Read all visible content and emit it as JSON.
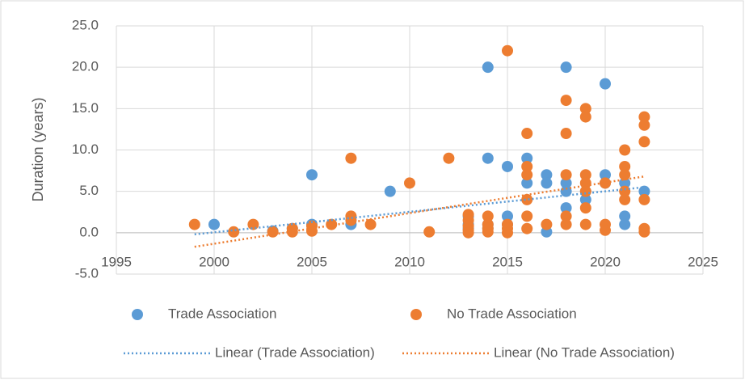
{
  "chart_data": {
    "type": "scatter",
    "y_label": "Duration (years)",
    "xlim": [
      1995,
      2025
    ],
    "xticks": [
      1995,
      2000,
      2005,
      2010,
      2015,
      2020,
      2025
    ],
    "ylim": [
      -5,
      25
    ],
    "yticks": [
      {
        "value": -5,
        "label": "-5.0"
      },
      {
        "value": 0,
        "label": "0.0"
      },
      {
        "value": 5,
        "label": "5.0"
      },
      {
        "value": 10,
        "label": "10.0"
      },
      {
        "value": 15,
        "label": "15.0"
      },
      {
        "value": 20,
        "label": "20.0"
      },
      {
        "value": 25,
        "label": "25.0"
      }
    ],
    "grid": true,
    "legend": "bottom",
    "series": [
      {
        "name": "Trade Association",
        "color": "#5b9bd5",
        "style": "marker",
        "x": [
          2000,
          2003,
          2004,
          2005,
          2005,
          2007,
          2009,
          2013,
          2013,
          2013,
          2014,
          2014,
          2014,
          2014,
          2015,
          2015,
          2015,
          2016,
          2016,
          2017,
          2017,
          2017,
          2018,
          2018,
          2018,
          2018,
          2019,
          2019,
          2020,
          2020,
          2020,
          2021,
          2021,
          2021,
          2022
        ],
        "values": [
          1,
          0.2,
          0.5,
          7,
          1,
          1,
          5,
          2,
          1,
          0.5,
          20,
          9,
          1,
          0.5,
          8,
          2,
          1,
          9,
          6,
          7,
          6,
          0.1,
          20,
          6,
          5,
          3,
          4,
          5,
          18,
          7,
          6,
          6,
          2,
          1,
          5
        ]
      },
      {
        "name": "No Trade Association",
        "color": "#ed7d31",
        "style": "marker",
        "x": [
          1999,
          2001,
          2002,
          2003,
          2004,
          2004,
          2005,
          2005,
          2006,
          2007,
          2007,
          2007,
          2008,
          2010,
          2011,
          2012,
          2013,
          2013,
          2013,
          2013,
          2013,
          2014,
          2014,
          2014,
          2014,
          2015,
          2015,
          2015,
          2015,
          2016,
          2016,
          2016,
          2016,
          2016,
          2016,
          2017,
          2018,
          2018,
          2018,
          2018,
          2018,
          2019,
          2019,
          2019,
          2019,
          2019,
          2019,
          2019,
          2020,
          2020,
          2020,
          2021,
          2021,
          2021,
          2021,
          2021,
          2022,
          2022,
          2022,
          2022,
          2022,
          2022
        ],
        "values": [
          1,
          0.1,
          1,
          0.1,
          0.5,
          0.1,
          0.8,
          0.2,
          1,
          9,
          2,
          1.5,
          1,
          6,
          0.1,
          9,
          2.2,
          1.5,
          0.8,
          0.3,
          0,
          2,
          1,
          0.5,
          0.1,
          22,
          1,
          0.5,
          0,
          12,
          8,
          7,
          4,
          2,
          0.5,
          1,
          16,
          12,
          7,
          2,
          1,
          15,
          14,
          7,
          6,
          5,
          3,
          1,
          6,
          1,
          0.3,
          10,
          8,
          7,
          5,
          4,
          14,
          13,
          11,
          4,
          0.5,
          0.1
        ]
      },
      {
        "name": "Linear (Trade Association)",
        "color": "#5b9bd5",
        "style": "trendline",
        "x": [
          1999,
          2022
        ],
        "values": [
          -0.2,
          5.5
        ]
      },
      {
        "name": "Linear (No Trade Association)",
        "color": "#ed7d31",
        "style": "trendline",
        "x": [
          1999,
          2022
        ],
        "values": [
          -1.7,
          6.8
        ]
      }
    ]
  }
}
